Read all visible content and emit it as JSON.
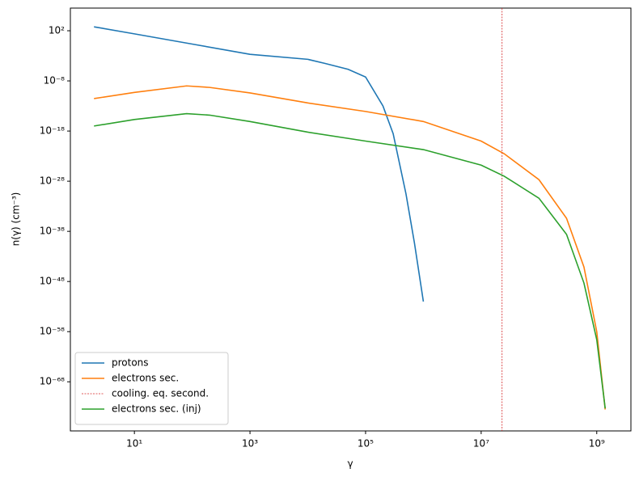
{
  "chart_data": {
    "type": "line",
    "xlabel": "γ",
    "ylabel": "n(γ)   (cm⁻³)",
    "xscale": "log",
    "yscale": "log",
    "xlim": [
      0.78,
      3900000000.0
    ],
    "ylim": [
      1.6e-78,
      3300000.0
    ],
    "xticks": [
      {
        "value": 10.0,
        "label": "10¹"
      },
      {
        "value": 1000.0,
        "label": "10³"
      },
      {
        "value": 100000.0,
        "label": "10⁵"
      },
      {
        "value": 10000000.0,
        "label": "10⁷"
      },
      {
        "value": 1000000000.0,
        "label": "10⁹"
      }
    ],
    "yticks": [
      {
        "value": 100.0,
        "label": "10²"
      },
      {
        "value": 1e-08,
        "label": "10⁻⁸"
      },
      {
        "value": 1e-18,
        "label": "10⁻¹⁸"
      },
      {
        "value": 1e-28,
        "label": "10⁻²⁸"
      },
      {
        "value": 1e-38,
        "label": "10⁻³⁸"
      },
      {
        "value": 1e-48,
        "label": "10⁻⁴⁸"
      },
      {
        "value": 1e-58,
        "label": "10⁻⁵⁸"
      },
      {
        "value": 1e-68,
        "label": "10⁻⁶⁸"
      }
    ],
    "legend": "lower left",
    "series": [
      {
        "name": "protons",
        "color": "#1f77b4",
        "x": [
          2,
          10,
          100,
          1000,
          10000.0,
          20000.0,
          50000.0,
          100000.0,
          200000.0,
          300000.0,
          500000.0,
          700000.0,
          1000000.0
        ],
        "values": [
          600.0,
          24.0,
          0.22,
          0.002,
          0.0002,
          3e-05,
          2e-06,
          6e-08,
          1e-13,
          3e-19,
          3e-31,
          5e-41,
          1e-52
        ]
      },
      {
        "name": "electrons sec.",
        "color": "#ff7f0e",
        "x": [
          2,
          10,
          80,
          200,
          1000,
          10000.0,
          100000.0,
          1000000.0,
          10000000.0,
          25000000.0,
          100000000.0,
          300000000.0,
          600000000.0,
          1000000000.0,
          1400000000.0
        ],
        "values": [
          3e-12,
          5e-11,
          1e-09,
          5e-10,
          4e-11,
          4e-13,
          8e-15,
          8e-17,
          1e-20,
          3e-23,
          2e-28,
          4e-36,
          8e-46,
          1e-58,
          3e-74
        ]
      },
      {
        "name": "cooling. eq. second.",
        "color": "#d62728",
        "type": "vline",
        "linestyle": "dashed",
        "x": 23000000.0
      },
      {
        "name": "electrons sec. (inj)",
        "color": "#2ca02c",
        "x": [
          2,
          10,
          80,
          200,
          1000,
          10000.0,
          100000.0,
          1000000.0,
          10000000.0,
          25000000.0,
          100000000.0,
          300000000.0,
          600000000.0,
          1000000000.0,
          1400000000.0
        ],
        "values": [
          1e-17,
          2e-16,
          3e-15,
          1.5e-15,
          8e-17,
          6e-19,
          1e-20,
          2e-22,
          1.6e-25,
          1e-27,
          4e-32,
          2.5e-39,
          5e-49,
          2.5e-60,
          5e-74
        ]
      }
    ]
  }
}
